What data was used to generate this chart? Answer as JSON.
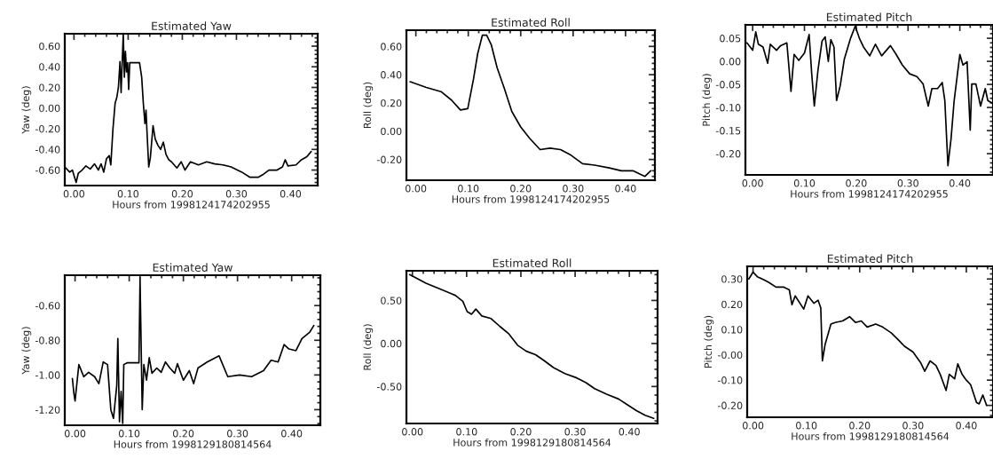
{
  "chart_data": [
    {
      "type": "line",
      "title": "Estimated Yaw",
      "xlabel": "Hours from 1998124174202955",
      "ylabel": "Yaw (deg)",
      "xlim": [
        -0.017,
        0.45
      ],
      "ylim": [
        -0.75,
        0.72
      ],
      "xticks": [
        {
          "value": 0,
          "label": "0.00"
        },
        {
          "value": 0.1,
          "label": "0.10"
        },
        {
          "value": 0.2,
          "label": "0.20"
        },
        {
          "value": 0.3,
          "label": "0.30"
        },
        {
          "value": 0.4,
          "label": "0.40"
        }
      ],
      "yticks": [
        {
          "value": -0.6,
          "label": "-0.60"
        },
        {
          "value": -0.4,
          "label": "-0.40"
        },
        {
          "value": -0.2,
          "label": "-0.20"
        },
        {
          "value": 0,
          "label": "0.00"
        },
        {
          "value": 0.2,
          "label": "0.20"
        },
        {
          "value": 0.4,
          "label": "0.40"
        },
        {
          "value": 0.6,
          "label": "0.60"
        }
      ],
      "series": [
        {
          "color": "#000000",
          "x": [
            -0.015,
            -0.008,
            -0.003,
            0.004,
            0.008,
            0.015,
            0.022,
            0.03,
            0.038,
            0.045,
            0.05,
            0.055,
            0.06,
            0.065,
            0.068,
            0.072,
            0.076,
            0.079,
            0.082,
            0.085,
            0.087,
            0.091,
            0.093,
            0.095,
            0.097,
            0.099,
            0.101,
            0.103,
            0.121,
            0.125,
            0.128,
            0.131,
            0.133,
            0.135,
            0.138,
            0.141,
            0.146,
            0.15,
            0.155,
            0.16,
            0.165,
            0.17,
            0.175,
            0.18,
            0.19,
            0.198,
            0.205,
            0.215,
            0.23,
            0.245,
            0.26,
            0.275,
            0.29,
            0.31,
            0.325,
            0.34,
            0.35,
            0.36,
            0.375,
            0.385,
            0.39,
            0.395,
            0.41,
            0.42,
            0.43,
            0.438
          ],
          "values": [
            -0.58,
            -0.62,
            -0.6,
            -0.72,
            -0.63,
            -0.6,
            -0.56,
            -0.59,
            -0.54,
            -0.6,
            -0.54,
            -0.62,
            -0.49,
            -0.46,
            -0.55,
            -0.2,
            0.05,
            0.1,
            0.2,
            0.45,
            0.15,
            0.72,
            0.3,
            0.55,
            0.35,
            0.44,
            0.18,
            0.44,
            0.44,
            0.3,
            0.05,
            -0.15,
            -0.02,
            -0.25,
            -0.57,
            -0.48,
            -0.17,
            -0.3,
            -0.36,
            -0.4,
            -0.33,
            -0.45,
            -0.5,
            -0.52,
            -0.58,
            -0.52,
            -0.6,
            -0.52,
            -0.55,
            -0.52,
            -0.54,
            -0.55,
            -0.57,
            -0.62,
            -0.67,
            -0.67,
            -0.64,
            -0.6,
            -0.6,
            -0.57,
            -0.5,
            -0.56,
            -0.55,
            -0.5,
            -0.47,
            -0.42
          ]
        }
      ]
    },
    {
      "type": "line",
      "title": "Estimated Roll",
      "xlabel": "Hours from 1998124174202955",
      "ylabel": "Roll (deg)",
      "xlim": [
        -0.018,
        0.456
      ],
      "ylim": [
        -0.347,
        0.715
      ],
      "xticks": [
        {
          "value": 0,
          "label": "0.00"
        },
        {
          "value": 0.1,
          "label": "0.10"
        },
        {
          "value": 0.2,
          "label": "0.20"
        },
        {
          "value": 0.3,
          "label": "0.30"
        },
        {
          "value": 0.4,
          "label": "0.40"
        }
      ],
      "yticks": [
        {
          "value": -0.2,
          "label": "-0.20"
        },
        {
          "value": 0,
          "label": "0.00"
        },
        {
          "value": 0.2,
          "label": "0.20"
        },
        {
          "value": 0.4,
          "label": "0.40"
        },
        {
          "value": 0.6,
          "label": "0.60"
        }
      ],
      "series": [
        {
          "color": "#000000",
          "x": [
            -0.011,
            0.02,
            0.048,
            0.068,
            0.085,
            0.099,
            0.11,
            0.118,
            0.127,
            0.135,
            0.144,
            0.155,
            0.169,
            0.183,
            0.2,
            0.217,
            0.237,
            0.256,
            0.276,
            0.296,
            0.318,
            0.341,
            0.369,
            0.392,
            0.414,
            0.437,
            0.448
          ],
          "values": [
            0.35,
            0.31,
            0.28,
            0.22,
            0.15,
            0.16,
            0.37,
            0.55,
            0.68,
            0.68,
            0.61,
            0.45,
            0.3,
            0.14,
            0.03,
            -0.05,
            -0.13,
            -0.12,
            -0.13,
            -0.17,
            -0.23,
            -0.24,
            -0.26,
            -0.28,
            -0.28,
            -0.32,
            -0.28
          ]
        }
      ]
    },
    {
      "type": "line",
      "title": "Estimated Pitch",
      "xlabel": "Hours from 1998124174202955",
      "ylabel": "Pitch (deg)",
      "xlim": [
        -0.014,
        0.464
      ],
      "ylim": [
        -0.246,
        0.079
      ],
      "xticks": [
        {
          "value": 0,
          "label": "0.00"
        },
        {
          "value": 0.1,
          "label": "0.10"
        },
        {
          "value": 0.2,
          "label": "0.20"
        },
        {
          "value": 0.3,
          "label": "0.30"
        },
        {
          "value": 0.4,
          "label": "0.40"
        }
      ],
      "yticks": [
        {
          "value": -0.2,
          "label": "-0.20"
        },
        {
          "value": -0.15,
          "label": "-0.15"
        },
        {
          "value": -0.1,
          "label": "-0.10"
        },
        {
          "value": -0.05,
          "label": "-0.05"
        },
        {
          "value": 0,
          "label": "0.00"
        },
        {
          "value": 0.05,
          "label": "0.05"
        }
      ],
      "series": [
        {
          "color": "#000000",
          "x": [
            -0.011,
            0.0,
            0.006,
            0.011,
            0.02,
            0.029,
            0.034,
            0.046,
            0.054,
            0.066,
            0.074,
            0.08,
            0.089,
            0.1,
            0.109,
            0.114,
            0.119,
            0.126,
            0.134,
            0.14,
            0.146,
            0.151,
            0.157,
            0.162,
            0.169,
            0.177,
            0.189,
            0.198,
            0.206,
            0.214,
            0.226,
            0.237,
            0.249,
            0.266,
            0.277,
            0.289,
            0.303,
            0.317,
            0.329,
            0.339,
            0.346,
            0.357,
            0.366,
            0.371,
            0.377,
            0.383,
            0.389,
            0.4,
            0.406,
            0.414,
            0.42,
            0.423,
            0.431,
            0.44,
            0.449,
            0.454,
            0.463
          ],
          "values": [
            0.04,
            0.024,
            0.064,
            0.037,
            0.031,
            -0.004,
            0.037,
            0.024,
            0.034,
            0.04,
            -0.065,
            0.015,
            0.002,
            0.018,
            0.058,
            -0.027,
            -0.097,
            -0.02,
            0.044,
            0.053,
            0.0,
            0.047,
            0.031,
            -0.085,
            -0.053,
            0.005,
            0.05,
            0.076,
            0.05,
            0.031,
            0.012,
            0.037,
            0.012,
            0.034,
            0.015,
            -0.008,
            -0.027,
            -0.033,
            -0.049,
            -0.097,
            -0.059,
            -0.059,
            -0.046,
            -0.085,
            -0.226,
            -0.168,
            -0.085,
            0.015,
            -0.008,
            -0.001,
            -0.149,
            -0.049,
            -0.049,
            -0.097,
            -0.059,
            -0.085,
            -0.091
          ]
        }
      ]
    },
    {
      "type": "line",
      "title": "Estimated Yaw",
      "xlabel": "Hours from 1998129180814564",
      "ylabel": "Yaw (deg)",
      "xlim": [
        -0.019,
        0.453
      ],
      "ylim": [
        -1.29,
        -0.425
      ],
      "xticks": [
        {
          "value": 0,
          "label": "0.00"
        },
        {
          "value": 0.1,
          "label": "0.10"
        },
        {
          "value": 0.2,
          "label": "0.20"
        },
        {
          "value": 0.3,
          "label": "0.30"
        },
        {
          "value": 0.4,
          "label": "0.40"
        }
      ],
      "yticks": [
        {
          "value": -1.2,
          "label": "-1.20"
        },
        {
          "value": -1.0,
          "label": "-1.00"
        },
        {
          "value": -0.8,
          "label": "-0.80"
        },
        {
          "value": -0.6,
          "label": "-0.60"
        }
      ],
      "series": [
        {
          "color": "#000000",
          "x": [
            -0.005,
            -0.002,
            0.0,
            0.004,
            0.007,
            0.016,
            0.025,
            0.036,
            0.044,
            0.052,
            0.06,
            0.066,
            0.071,
            0.077,
            0.079,
            0.082,
            0.085,
            0.088,
            0.09,
            0.096,
            0.118,
            0.12,
            0.122,
            0.124,
            0.127,
            0.132,
            0.137,
            0.142,
            0.151,
            0.159,
            0.167,
            0.175,
            0.184,
            0.189,
            0.2,
            0.211,
            0.219,
            0.227,
            0.244,
            0.266,
            0.282,
            0.304,
            0.326,
            0.348,
            0.362,
            0.375,
            0.386,
            0.395,
            0.408,
            0.419,
            0.433,
            0.441
          ],
          "values": [
            -1.02,
            -1.11,
            -1.15,
            -1.03,
            -0.94,
            -1.01,
            -0.985,
            -1.01,
            -1.05,
            -0.925,
            -0.94,
            -1.2,
            -1.25,
            -1.06,
            -0.79,
            -1.27,
            -1.095,
            -1.28,
            -0.94,
            -0.93,
            -0.93,
            -0.44,
            -0.82,
            -1.2,
            -0.94,
            -1.03,
            -0.9,
            -0.99,
            -0.96,
            -0.985,
            -0.925,
            -0.96,
            -0.99,
            -0.935,
            -1.03,
            -0.975,
            -1.05,
            -0.96,
            -0.925,
            -0.89,
            -1.01,
            -1.0,
            -1.01,
            -0.975,
            -0.915,
            -0.925,
            -0.825,
            -0.85,
            -0.86,
            -0.79,
            -0.755,
            -0.715
          ]
        }
      ]
    },
    {
      "type": "line",
      "title": "Estimated Roll",
      "xlabel": "Hours from 1998129180814564",
      "ylabel": "Roll (deg)",
      "xlim": [
        -0.011,
        0.452
      ],
      "ylim": [
        -0.93,
        0.845
      ],
      "xticks": [
        {
          "value": 0,
          "label": "0.00"
        },
        {
          "value": 0.1,
          "label": "0.10"
        },
        {
          "value": 0.2,
          "label": "0.20"
        },
        {
          "value": 0.3,
          "label": "0.30"
        },
        {
          "value": 0.4,
          "label": "0.40"
        }
      ],
      "yticks": [
        {
          "value": -0.5,
          "label": "-0.50"
        },
        {
          "value": 0,
          "label": "0.00"
        },
        {
          "value": 0.5,
          "label": "0.50"
        }
      ],
      "series": [
        {
          "color": "#000000",
          "x": [
            -0.005,
            0.025,
            0.052,
            0.079,
            0.093,
            0.101,
            0.109,
            0.117,
            0.128,
            0.145,
            0.161,
            0.178,
            0.194,
            0.21,
            0.227,
            0.243,
            0.26,
            0.281,
            0.303,
            0.32,
            0.336,
            0.358,
            0.38,
            0.396,
            0.413,
            0.429,
            0.445
          ],
          "values": [
            0.8,
            0.7,
            0.63,
            0.56,
            0.49,
            0.37,
            0.34,
            0.4,
            0.32,
            0.29,
            0.2,
            0.11,
            -0.02,
            -0.09,
            -0.13,
            -0.2,
            -0.28,
            -0.35,
            -0.4,
            -0.455,
            -0.525,
            -0.59,
            -0.645,
            -0.71,
            -0.78,
            -0.835,
            -0.87
          ]
        }
      ]
    },
    {
      "type": "line",
      "title": "Estimated Pitch",
      "xlabel": "Hours from 1998129180814564",
      "ylabel": "Pitch (deg)",
      "xlim": [
        -0.011,
        0.45
      ],
      "ylim": [
        -0.247,
        0.35
      ],
      "xticks": [
        {
          "value": 0,
          "label": "0.00"
        },
        {
          "value": 0.1,
          "label": "0.10"
        },
        {
          "value": 0.2,
          "label": "0.20"
        },
        {
          "value": 0.3,
          "label": "0.30"
        },
        {
          "value": 0.4,
          "label": "0.40"
        }
      ],
      "yticks": [
        {
          "value": -0.2,
          "label": "-0.20"
        },
        {
          "value": -0.1,
          "label": "-0.10"
        },
        {
          "value": 0,
          "label": "-0.00"
        },
        {
          "value": 0.1,
          "label": "0.10"
        },
        {
          "value": 0.2,
          "label": "0.20"
        },
        {
          "value": 0.3,
          "label": "0.30"
        }
      ],
      "series": [
        {
          "color": "#000000",
          "x": [
            -0.008,
            0.0,
            0.008,
            0.019,
            0.03,
            0.043,
            0.057,
            0.068,
            0.073,
            0.079,
            0.095,
            0.103,
            0.114,
            0.122,
            0.127,
            0.13,
            0.135,
            0.146,
            0.154,
            0.168,
            0.181,
            0.192,
            0.203,
            0.214,
            0.23,
            0.243,
            0.259,
            0.273,
            0.284,
            0.3,
            0.314,
            0.322,
            0.332,
            0.343,
            0.351,
            0.362,
            0.368,
            0.378,
            0.384,
            0.392,
            0.4,
            0.408,
            0.419,
            0.424,
            0.431,
            0.438
          ],
          "values": [
            0.3,
            0.327,
            0.309,
            0.298,
            0.286,
            0.268,
            0.268,
            0.257,
            0.198,
            0.233,
            0.181,
            0.233,
            0.204,
            0.216,
            0.186,
            -0.024,
            0.04,
            0.122,
            0.128,
            0.134,
            0.151,
            0.128,
            0.134,
            0.11,
            0.122,
            0.11,
            0.087,
            0.058,
            0.034,
            0.011,
            -0.03,
            -0.065,
            -0.024,
            -0.042,
            -0.077,
            -0.141,
            -0.077,
            -0.095,
            -0.036,
            -0.077,
            -0.1,
            -0.118,
            -0.188,
            -0.194,
            -0.159,
            -0.2
          ]
        }
      ]
    }
  ]
}
